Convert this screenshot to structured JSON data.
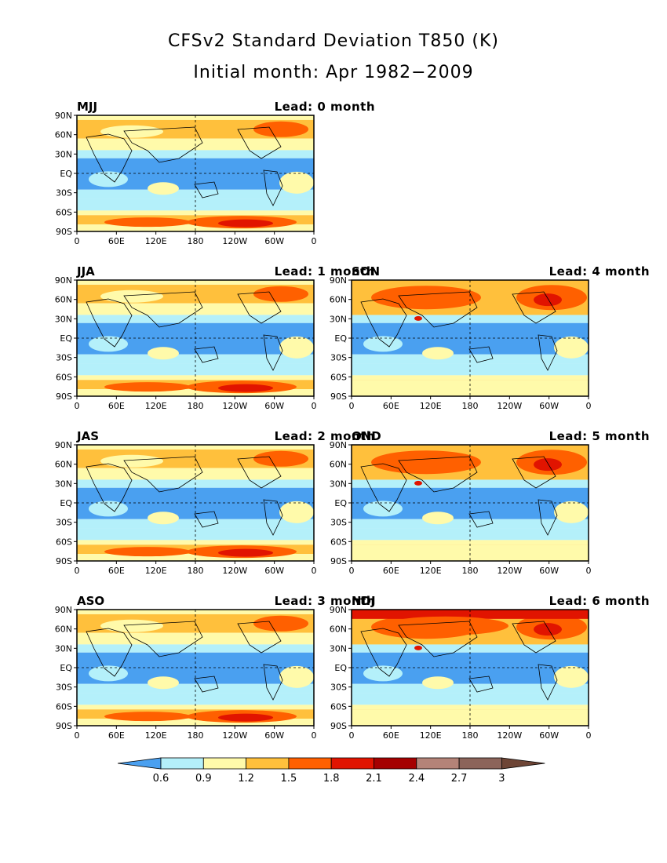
{
  "title": "CFSv2 Standard Deviation T850 (K)",
  "subtitle": "Initial month: Apr 1982−2009",
  "lat_labels": [
    "90N",
    "60N",
    "30N",
    "EQ",
    "30S",
    "60S",
    "90S"
  ],
  "lon_labels": [
    "0",
    "60E",
    "120E",
    "180",
    "120W",
    "60W",
    "0"
  ],
  "colors": [
    "#4aa0f0",
    "#b4f0fa",
    "#fffaaa",
    "#ffc03c",
    "#ff6000",
    "#e11400",
    "#a50000",
    "#b48378",
    "#8c645a",
    "#6e4536"
  ],
  "colorbar": {
    "labels": [
      "0.6",
      "0.9",
      "1.2",
      "1.5",
      "1.8",
      "2.1",
      "2.4",
      "2.7",
      "3"
    ],
    "colors": [
      "#4aa0f0",
      "#b4f0fa",
      "#fffaaa",
      "#ffc03c",
      "#ff6000",
      "#e11400",
      "#a50000",
      "#b48378",
      "#8c645a",
      "#6e4536"
    ]
  },
  "panels": [
    {
      "season": "MJJ",
      "lead": "Lead: 0 month",
      "lead_months": 0
    },
    {
      "season": "JJA",
      "lead": "Lead: 1 month",
      "lead_months": 1
    },
    {
      "season": "SON",
      "lead": "Lead: 4 month",
      "lead_months": 4
    },
    {
      "season": "JAS",
      "lead": "Lead: 2 month",
      "lead_months": 2
    },
    {
      "season": "OND",
      "lead": "Lead: 5 month",
      "lead_months": 5
    },
    {
      "season": "ASO",
      "lead": "Lead: 3 month",
      "lead_months": 3
    },
    {
      "season": "NDJ",
      "lead": "Lead: 6 month",
      "lead_months": 6
    }
  ]
}
